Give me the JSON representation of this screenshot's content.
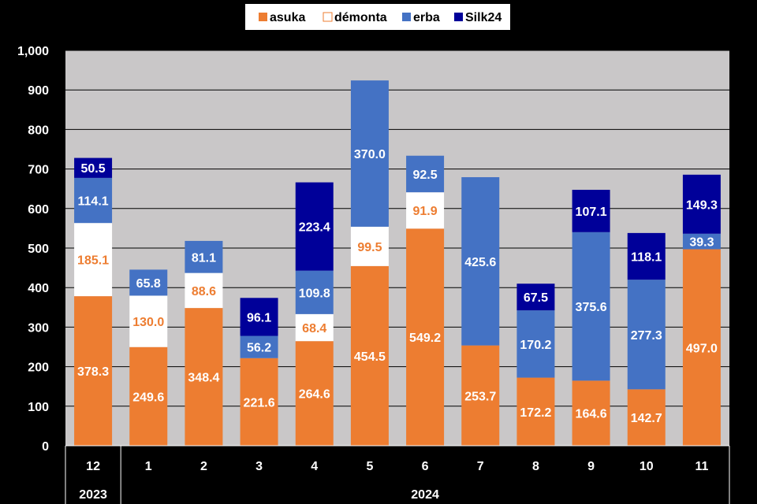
{
  "chart_data": {
    "type": "bar",
    "stacked": true,
    "categories": [
      "12",
      "1",
      "2",
      "3",
      "4",
      "5",
      "6",
      "7",
      "8",
      "9",
      "10",
      "11"
    ],
    "year_groups": [
      {
        "label": "2023",
        "from": 0,
        "to": 0
      },
      {
        "label": "2024",
        "from": 1,
        "to": 11
      }
    ],
    "series": [
      {
        "name": "asuka",
        "color": "#ED7D31",
        "label_color": "#FFFFFF",
        "values": [
          378.3,
          249.6,
          348.4,
          221.6,
          264.6,
          454.5,
          549.2,
          253.7,
          172.2,
          164.6,
          142.7,
          497.0
        ]
      },
      {
        "name": "démonta",
        "color": "#FFFFFF",
        "label_color": "#ED7D31",
        "values": [
          185.1,
          130.0,
          88.6,
          null,
          68.4,
          99.5,
          91.9,
          null,
          null,
          null,
          null,
          null
        ]
      },
      {
        "name": "erba",
        "color": "#4472C4",
        "label_color": "#FFFFFF",
        "values": [
          114.1,
          65.8,
          81.1,
          56.2,
          109.8,
          370.0,
          92.5,
          425.6,
          170.2,
          375.6,
          277.3,
          39.3
        ]
      },
      {
        "name": "Silk24",
        "color": "#000099",
        "label_color": "#FFFFFF",
        "values": [
          50.5,
          null,
          null,
          96.1,
          223.4,
          null,
          null,
          null,
          67.5,
          107.1,
          118.1,
          149.3
        ]
      }
    ],
    "ylim": [
      0,
      1000
    ],
    "yticks": [
      "0",
      "100",
      "200",
      "300",
      "400",
      "500",
      "600",
      "700",
      "800",
      "900",
      "1,000"
    ],
    "grid": true,
    "legend_position": "top-center",
    "plot_background": "#C9C7C8"
  }
}
